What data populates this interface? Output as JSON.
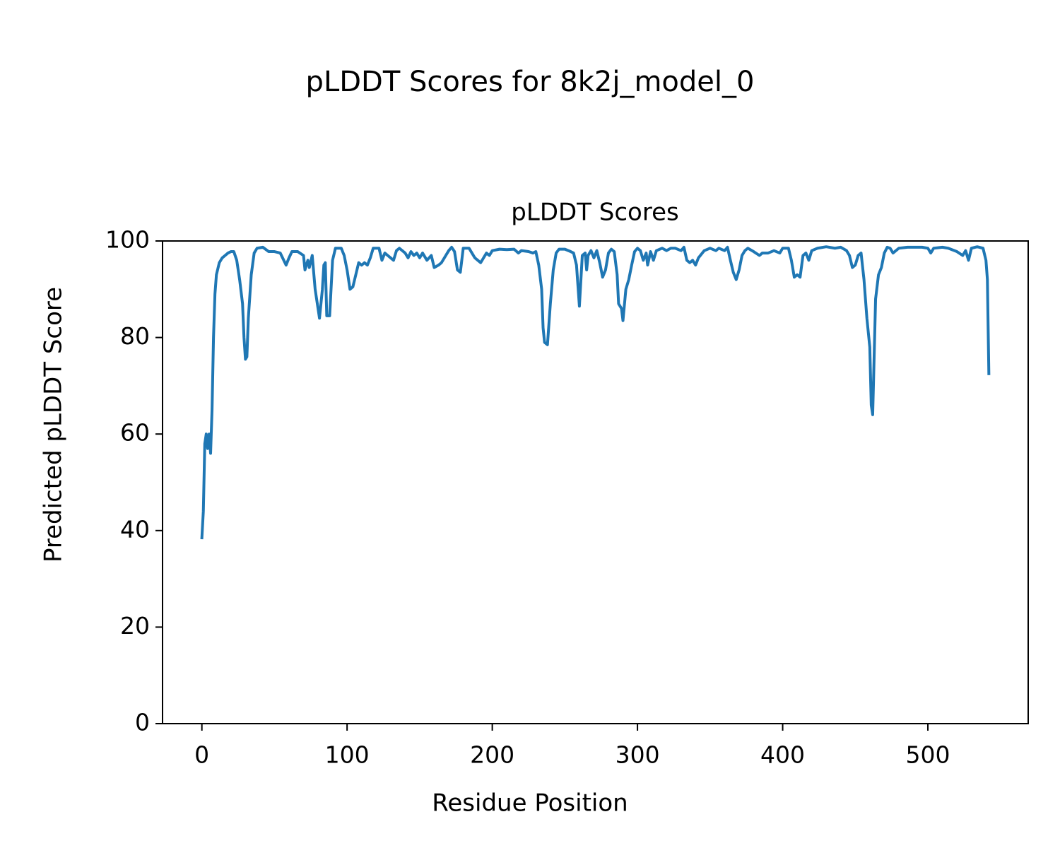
{
  "chart_data": {
    "type": "line",
    "title": "pLDDT Scores for 8k2j_model_0",
    "subtitle": "pLDDT Scores",
    "x_label": "Residue Position",
    "y_label": "Predicted pLDDT Score",
    "color": "#1f77b4",
    "xlim": [
      -27.1,
      569.1
    ],
    "xticks": [
      0,
      100,
      200,
      300,
      400,
      500
    ],
    "ylim": [
      0,
      100
    ],
    "yticks": [
      0,
      20,
      40,
      60,
      80,
      100
    ],
    "grid": false,
    "x": [
      0,
      1,
      2,
      3,
      4,
      5,
      6,
      7,
      8,
      9,
      10,
      12,
      14,
      16,
      18,
      20,
      22,
      24,
      26,
      28,
      29,
      30,
      31,
      32,
      34,
      36,
      38,
      42,
      46,
      50,
      54,
      58,
      60,
      62,
      66,
      70,
      71,
      73,
      74,
      76,
      78,
      80,
      81,
      83,
      84,
      85,
      86,
      88,
      90,
      92,
      96,
      98,
      100,
      102,
      104,
      106,
      108,
      110,
      112,
      114,
      116,
      118,
      122,
      124,
      126,
      128,
      130,
      132,
      134,
      136,
      140,
      142,
      144,
      146,
      148,
      150,
      152,
      155,
      158,
      160,
      163,
      165,
      168,
      170,
      172,
      174,
      176,
      178,
      180,
      184,
      186,
      188,
      190,
      192,
      194,
      196,
      198,
      200,
      205,
      210,
      215,
      218,
      220,
      225,
      228,
      230,
      232,
      234,
      235,
      236,
      238,
      240,
      242,
      244,
      246,
      250,
      254,
      256,
      258,
      260,
      262,
      264,
      265,
      266,
      268,
      270,
      272,
      274,
      276,
      278,
      280,
      282,
      284,
      286,
      287,
      289,
      290,
      292,
      294,
      296,
      298,
      300,
      302,
      304,
      306,
      307,
      309,
      311,
      313,
      317,
      320,
      323,
      326,
      330,
      332,
      334,
      336,
      338,
      340,
      342,
      346,
      350,
      354,
      356,
      360,
      362,
      364,
      366,
      368,
      370,
      372,
      374,
      376,
      380,
      384,
      386,
      390,
      394,
      398,
      400,
      404,
      406,
      408,
      410,
      412,
      414,
      416,
      418,
      420,
      424,
      430,
      436,
      440,
      444,
      446,
      448,
      450,
      452,
      454,
      456,
      458,
      460,
      461,
      462,
      464,
      466,
      468,
      470,
      472,
      474,
      476,
      480,
      486,
      492,
      496,
      500,
      502,
      504,
      510,
      514,
      520,
      524,
      526,
      528,
      530,
      534,
      538,
      540,
      541,
      542
    ],
    "values": [
      38.5,
      44,
      58,
      60,
      57,
      60,
      56,
      65,
      80,
      89,
      93,
      95.5,
      96.5,
      97,
      97.5,
      97.8,
      97.8,
      96,
      92,
      87,
      80,
      75.5,
      76,
      84,
      93,
      97.5,
      98.5,
      98.7,
      97.8,
      97.8,
      97.5,
      95,
      96.5,
      97.8,
      97.8,
      97,
      94,
      96,
      94.5,
      97,
      90,
      86,
      84,
      90,
      95,
      95.5,
      84.5,
      84.5,
      96,
      98.5,
      98.5,
      97,
      94,
      90,
      90.5,
      93,
      95.5,
      95,
      95.5,
      95,
      96.5,
      98.5,
      98.5,
      96,
      97.5,
      97,
      96.5,
      96,
      98,
      98.5,
      97.5,
      96.5,
      97.8,
      97,
      97.5,
      96.5,
      97.5,
      96,
      97,
      94.5,
      95,
      95.5,
      97,
      98,
      98.7,
      97.8,
      94,
      93.5,
      98.5,
      98.5,
      97.5,
      96.5,
      96,
      95.5,
      96.5,
      97.5,
      97,
      98,
      98.3,
      98.2,
      98.3,
      97.5,
      98,
      97.8,
      97.5,
      97.8,
      95,
      90,
      82,
      79,
      78.5,
      87,
      94,
      97.5,
      98.3,
      98.3,
      97.8,
      97.5,
      95,
      86.5,
      97,
      97.5,
      94,
      97,
      98,
      96.5,
      98,
      95.5,
      92.5,
      94,
      97.5,
      98.3,
      97.8,
      93,
      87,
      86,
      83.5,
      90,
      92,
      95,
      97.8,
      98.5,
      98,
      96,
      97.5,
      95,
      97.8,
      96,
      98,
      98.5,
      98,
      98.5,
      98.5,
      98,
      98.7,
      96,
      95.5,
      96,
      95,
      96.5,
      98,
      98.5,
      98,
      98.5,
      98,
      98.7,
      96,
      93.5,
      92,
      94,
      97,
      98,
      98.5,
      97.8,
      97,
      97.5,
      97.5,
      98,
      97.5,
      98.5,
      98.5,
      96,
      92.5,
      93,
      92.5,
      97,
      97.5,
      96,
      98,
      98.5,
      98.8,
      98.5,
      98.7,
      98,
      97,
      94.5,
      95,
      97,
      97.5,
      92,
      84,
      78,
      66,
      64,
      88,
      93,
      94.5,
      97.5,
      98.7,
      98.5,
      97.5,
      98.5,
      98.7,
      98.7,
      98.7,
      98.5,
      97.5,
      98.5,
      98.7,
      98.5,
      97.8,
      97,
      98,
      96,
      98.5,
      98.8,
      98.5,
      96,
      92,
      72.5
    ]
  }
}
